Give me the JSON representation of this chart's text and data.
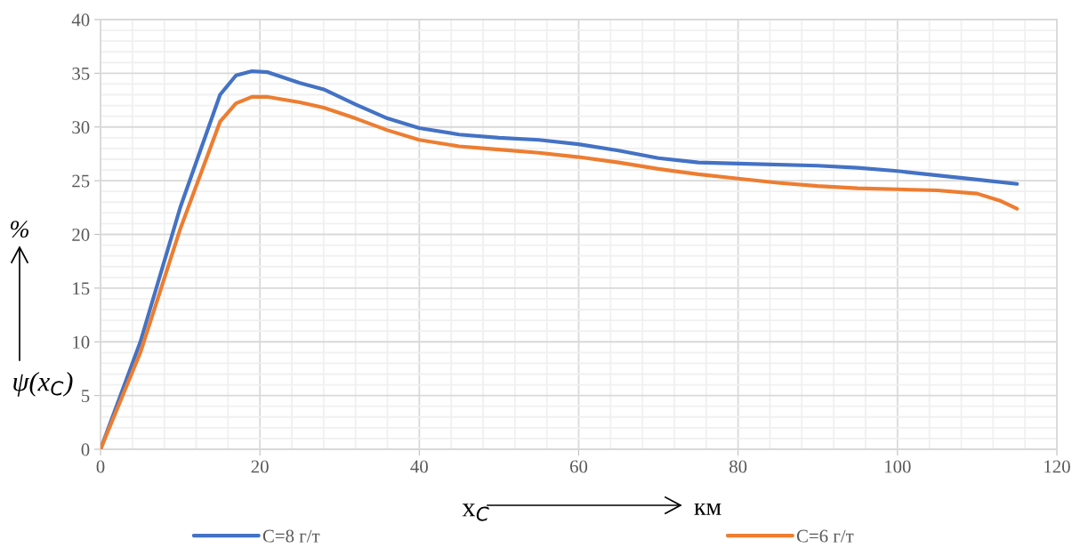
{
  "chart_data": {
    "type": "line",
    "xlabel": "x$_{C}$",
    "ylabel": "ψ(x$_{C}$)",
    "annotations": [
      "км",
      "%"
    ],
    "xlim": [
      0,
      120
    ],
    "xticks": [
      0,
      20,
      40,
      60,
      80,
      100,
      120
    ],
    "ylim": [
      0,
      40
    ],
    "yticks": [
      0,
      5,
      10,
      15,
      20,
      25,
      30,
      35,
      40
    ],
    "grid": true,
    "legend": "bottom",
    "marker": "none",
    "line_style": "solid",
    "series": [
      {
        "name": "C=8 г/т",
        "color": "#4472c4",
        "x": [
          0,
          5,
          10,
          15,
          17,
          19,
          21,
          25,
          28,
          32,
          36,
          40,
          45,
          50,
          55,
          60,
          65,
          70,
          75,
          80,
          90,
          95,
          100,
          105,
          110,
          115
        ],
        "values": [
          0,
          10,
          22.5,
          33,
          34.8,
          35.2,
          35.1,
          34.1,
          33.5,
          32.1,
          30.8,
          29.9,
          29.3,
          29.0,
          28.8,
          28.4,
          27.8,
          27.1,
          26.7,
          26.6,
          26.4,
          26.2,
          25.9,
          25.5,
          25.1,
          24.7
        ]
      },
      {
        "name": "C=6 г/т",
        "color": "#ed7d31",
        "x": [
          0,
          5,
          10,
          15,
          17,
          19,
          21,
          25,
          28,
          32,
          36,
          40,
          45,
          50,
          55,
          60,
          65,
          70,
          75,
          80,
          85,
          90,
          95,
          100,
          105,
          110,
          113,
          115
        ],
        "values": [
          0,
          9,
          20.5,
          30.5,
          32.2,
          32.8,
          32.8,
          32.3,
          31.8,
          30.8,
          29.7,
          28.8,
          28.2,
          27.9,
          27.6,
          27.2,
          26.7,
          26.1,
          25.6,
          25.2,
          24.8,
          24.5,
          24.3,
          24.2,
          24.1,
          23.8,
          23.1,
          22.4
        ]
      }
    ]
  }
}
